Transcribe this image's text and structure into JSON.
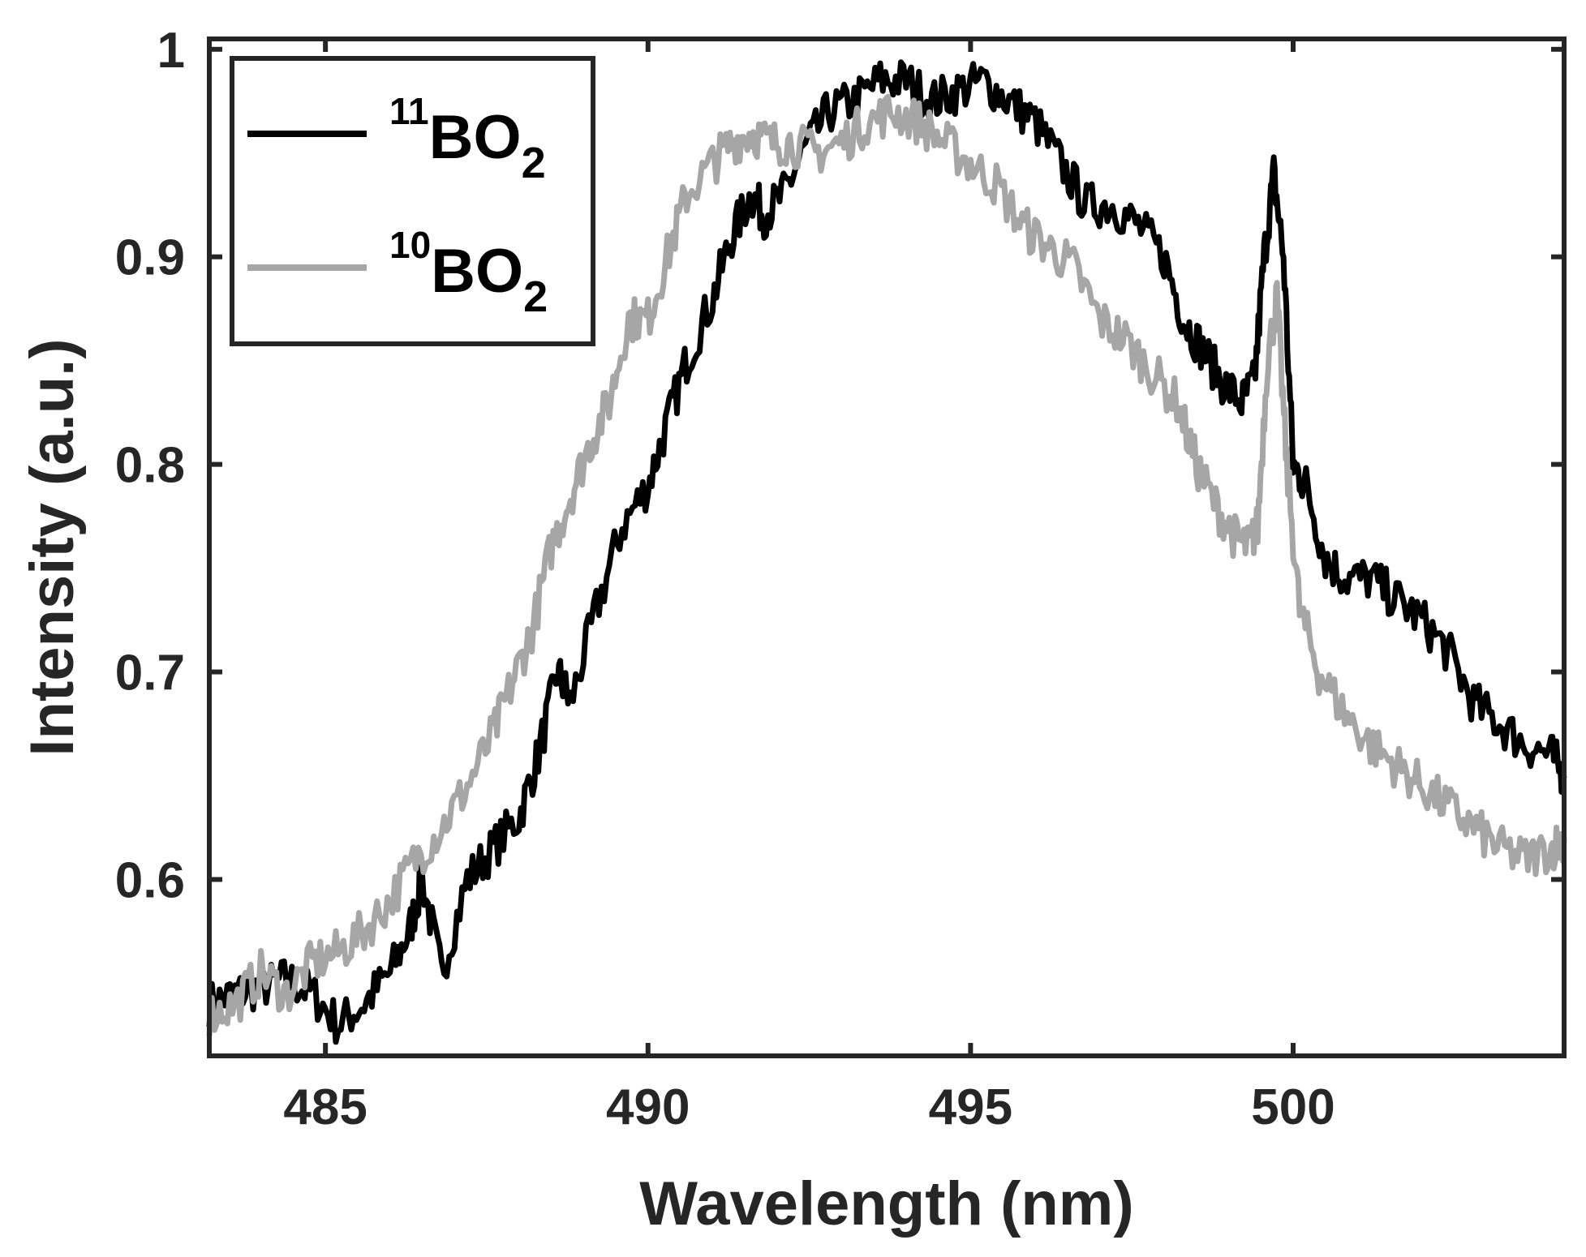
{
  "chart_data": {
    "type": "line",
    "title": "",
    "xlabel": "Wavelength (nm)",
    "ylabel": "Intensity (a.u.)",
    "xlim": [
      483.2,
      504.2
    ],
    "ylim": [
      0.515,
      1.005
    ],
    "xticks": [
      485,
      490,
      495,
      500
    ],
    "xtick_labels": [
      "485",
      "490",
      "495",
      "500"
    ],
    "yticks": [
      0.6,
      0.7,
      0.8,
      0.9,
      1.0
    ],
    "ytick_labels": [
      "0.6",
      "0.7",
      "0.8",
      "0.9",
      "1"
    ],
    "grid": false,
    "legend_position": "top-left",
    "series": [
      {
        "name": "11BO2",
        "label_mass": "11",
        "label_base": "BO",
        "label_sub": "2",
        "color": "#000000",
        "x": [
          483.2,
          483.6,
          484.0,
          484.4,
          484.8,
          485.2,
          485.6,
          486.0,
          486.3,
          486.5,
          486.8,
          487.2,
          487.6,
          488.0,
          488.3,
          488.6,
          488.8,
          489.2,
          489.6,
          490.0,
          490.3,
          490.6,
          491.0,
          491.3,
          491.6,
          491.8,
          492.1,
          492.4,
          492.8,
          493.2,
          493.6,
          494.0,
          494.4,
          494.8,
          495.2,
          495.6,
          496.0,
          496.4,
          496.8,
          497.2,
          497.6,
          498.0,
          498.3,
          498.6,
          498.9,
          499.2,
          499.4,
          499.55,
          499.7,
          499.85,
          500.0,
          500.2,
          500.5,
          500.8,
          501.2,
          501.6,
          502.0,
          502.4,
          502.8,
          503.2,
          503.6,
          504.0,
          504.2
        ],
        "y": [
          0.54,
          0.545,
          0.548,
          0.552,
          0.545,
          0.53,
          0.54,
          0.555,
          0.575,
          0.6,
          0.555,
          0.6,
          0.615,
          0.63,
          0.66,
          0.7,
          0.685,
          0.73,
          0.77,
          0.79,
          0.82,
          0.85,
          0.88,
          0.91,
          0.93,
          0.92,
          0.93,
          0.95,
          0.97,
          0.975,
          0.985,
          0.985,
          0.975,
          0.98,
          0.985,
          0.975,
          0.965,
          0.945,
          0.925,
          0.925,
          0.915,
          0.9,
          0.87,
          0.855,
          0.84,
          0.83,
          0.84,
          0.9,
          0.94,
          0.9,
          0.8,
          0.79,
          0.755,
          0.745,
          0.745,
          0.735,
          0.725,
          0.71,
          0.685,
          0.675,
          0.665,
          0.66,
          0.65
        ]
      },
      {
        "name": "10BO2",
        "label_mass": "10",
        "label_base": "BO",
        "label_sub": "2",
        "color": "#a6a6a6",
        "x": [
          483.2,
          483.6,
          484.0,
          484.4,
          484.8,
          485.2,
          485.6,
          486.0,
          486.4,
          486.8,
          487.2,
          487.6,
          487.9,
          488.2,
          488.5,
          488.8,
          489.1,
          489.4,
          489.7,
          490.0,
          490.3,
          490.6,
          491.0,
          491.3,
          491.6,
          491.9,
          492.2,
          492.6,
          493.0,
          493.4,
          493.8,
          494.2,
          494.6,
          495.0,
          495.4,
          495.8,
          496.2,
          496.6,
          497.0,
          497.4,
          497.8,
          498.2,
          498.5,
          498.8,
          499.1,
          499.3,
          499.45,
          499.6,
          499.75,
          499.9,
          500.1,
          500.4,
          500.8,
          501.2,
          501.6,
          502.0,
          502.4,
          502.8,
          503.2,
          503.6,
          504.0,
          504.2
        ],
        "y": [
          0.535,
          0.54,
          0.555,
          0.545,
          0.56,
          0.565,
          0.575,
          0.59,
          0.61,
          0.625,
          0.645,
          0.67,
          0.695,
          0.72,
          0.76,
          0.785,
          0.81,
          0.83,
          0.87,
          0.87,
          0.9,
          0.93,
          0.945,
          0.955,
          0.96,
          0.955,
          0.955,
          0.95,
          0.955,
          0.965,
          0.97,
          0.965,
          0.955,
          0.945,
          0.935,
          0.915,
          0.905,
          0.895,
          0.87,
          0.86,
          0.845,
          0.83,
          0.8,
          0.78,
          0.765,
          0.76,
          0.77,
          0.85,
          0.88,
          0.8,
          0.73,
          0.7,
          0.68,
          0.665,
          0.655,
          0.645,
          0.635,
          0.625,
          0.615,
          0.61,
          0.615,
          0.62
        ]
      }
    ]
  }
}
